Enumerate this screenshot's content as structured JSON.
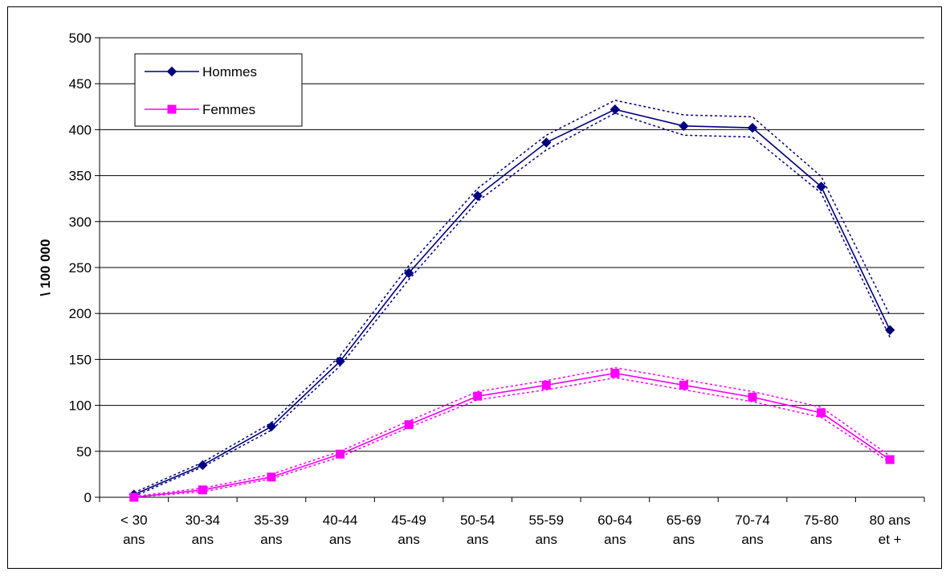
{
  "chart_data": {
    "type": "line",
    "title": "",
    "xlabel": "",
    "ylabel": "\\ 100 000",
    "ylim": [
      0,
      500
    ],
    "yticks": [
      "0",
      "50",
      "100",
      "150",
      "200",
      "250",
      "300",
      "350",
      "400",
      "450",
      "500"
    ],
    "grid": "horizontal",
    "legend_position": "top-left",
    "categories": [
      [
        "< 30",
        "ans"
      ],
      [
        "30-34",
        "ans"
      ],
      [
        "35-39",
        "ans"
      ],
      [
        "40-44",
        "ans"
      ],
      [
        "45-49",
        "ans"
      ],
      [
        "50-54",
        "ans"
      ],
      [
        "55-59",
        "ans"
      ],
      [
        "60-64",
        "ans"
      ],
      [
        "65-69",
        "ans"
      ],
      [
        "70-74",
        "ans"
      ],
      [
        "75-80",
        "ans"
      ],
      [
        "80 ans",
        "et +"
      ]
    ],
    "series": [
      {
        "name": "Hommes",
        "color": "#000080",
        "marker": "diamond",
        "values": [
          3,
          35,
          77,
          148,
          244,
          328,
          386,
          422,
          404,
          402,
          338,
          182
        ],
        "ci_lower": [
          1,
          33,
          73,
          143,
          237,
          322,
          378,
          418,
          394,
          392,
          331,
          174
        ],
        "ci_upper": [
          5,
          38,
          81,
          154,
          252,
          336,
          394,
          432,
          416,
          414,
          349,
          198
        ]
      },
      {
        "name": "Femmes",
        "color": "#ff00ff",
        "marker": "square",
        "values": [
          0,
          8,
          22,
          47,
          79,
          110,
          122,
          135,
          122,
          109,
          92,
          41
        ],
        "ci_lower": [
          0,
          6,
          20,
          44,
          76,
          106,
          117,
          130,
          117,
          104,
          87,
          38
        ],
        "ci_upper": [
          1,
          10,
          25,
          50,
          83,
          115,
          127,
          141,
          128,
          115,
          98,
          45
        ]
      }
    ]
  }
}
